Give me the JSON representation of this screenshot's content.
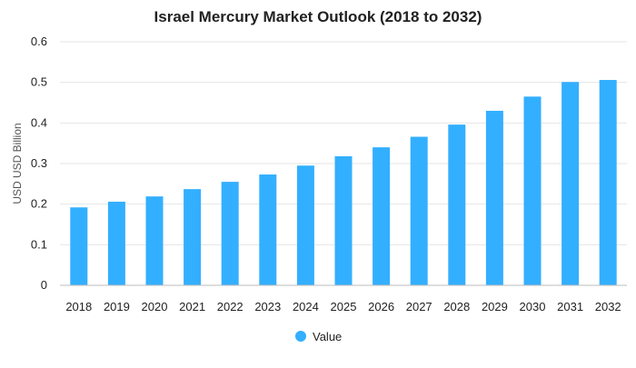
{
  "chart_data": {
    "type": "bar",
    "title": "Israel Mercury Market Outlook (2018 to 2032)",
    "xlabel": "",
    "ylabel": "USD USD Billion",
    "categories": [
      "2018",
      "2019",
      "2020",
      "2021",
      "2022",
      "2023",
      "2024",
      "2025",
      "2026",
      "2027",
      "2028",
      "2029",
      "2030",
      "2031",
      "2032"
    ],
    "series": [
      {
        "name": "Value",
        "color": "#33afff",
        "values": [
          0.192,
          0.206,
          0.219,
          0.237,
          0.255,
          0.273,
          0.295,
          0.318,
          0.34,
          0.366,
          0.396,
          0.43,
          0.465,
          0.501,
          0.506
        ]
      }
    ],
    "ylim": [
      0,
      0.6
    ],
    "yticks": [
      "0",
      "0.1",
      "0.2",
      "0.3",
      "0.4",
      "0.5",
      "0.6"
    ],
    "grid": true,
    "legend_position": "bottom-center"
  }
}
